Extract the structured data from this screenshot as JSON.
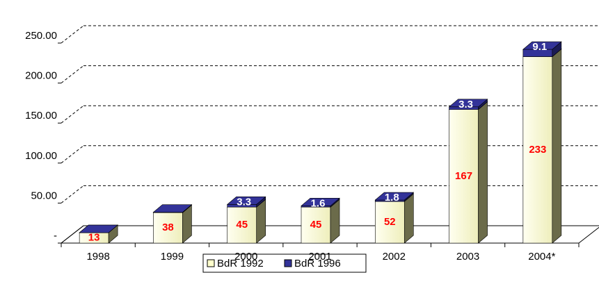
{
  "chart_data": {
    "type": "bar3d_stacked",
    "categories": [
      "1998",
      "1999",
      "2000",
      "2001",
      "2002",
      "2003",
      "2004*"
    ],
    "series": [
      {
        "name": "BdR 1992",
        "color": "#ffffcc",
        "values": [
          13,
          38,
          45,
          45,
          52,
          167,
          233
        ]
      },
      {
        "name": "BdR 1996",
        "color": "#333399",
        "values": [
          0,
          0.5,
          3.3,
          1.6,
          1.8,
          3.3,
          9.1
        ],
        "value_labels": [
          null,
          null,
          "3.3",
          "1.6",
          "1.8",
          "3.3",
          "9.1"
        ]
      }
    ],
    "ylim": [
      0,
      250
    ],
    "yticks": [
      {
        "value": 0,
        "label": "-"
      },
      {
        "value": 50,
        "label": "50.00"
      },
      {
        "value": 100,
        "label": "100.00"
      },
      {
        "value": 150,
        "label": "150.00"
      },
      {
        "value": 200,
        "label": "200.00"
      },
      {
        "value": 250,
        "label": "250.00"
      }
    ],
    "grid": true
  }
}
